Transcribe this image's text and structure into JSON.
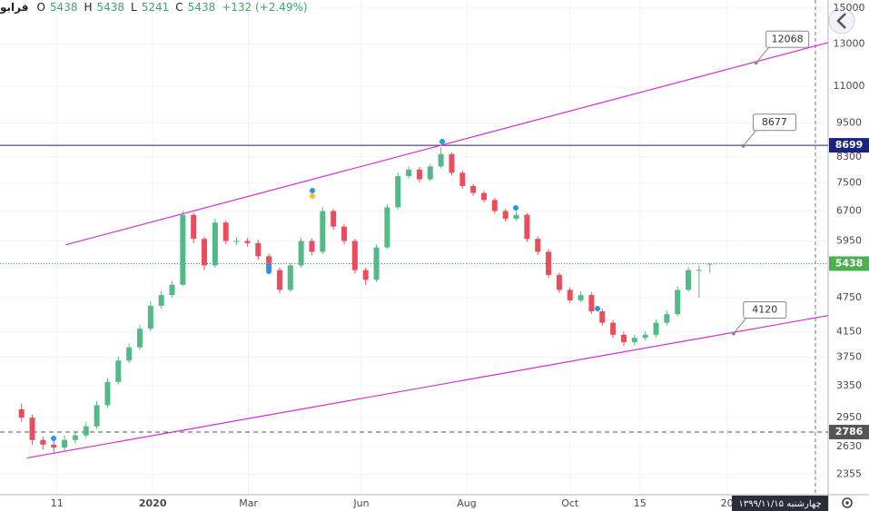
{
  "chart_data": {
    "type": "candlestick",
    "symbol": "فرابو",
    "ohlc_letters": [
      "O",
      "H",
      "L",
      "C"
    ],
    "change_label": "+132 (+2.49%)",
    "crosshair_date": "چهارشنبه ۱۳۹۹/۱۱/۱۵",
    "log_scale": true,
    "grid": true,
    "up_color": "#53b987",
    "down_color": "#eb4d5c",
    "xlim": [
      -2,
      75
    ],
    "ylim": [
      2173,
      15490
    ],
    "yticks": [
      2355,
      2630,
      2950,
      3350,
      3750,
      4150,
      4750,
      5950,
      6700,
      7500,
      8300,
      9500,
      11000,
      13000,
      15000
    ],
    "xticks": [
      {
        "value": 3.3,
        "label": "11"
      },
      {
        "value": 12.2,
        "label": "2020"
      },
      {
        "value": 21.1,
        "label": "Mar"
      },
      {
        "value": 31.6,
        "label": "Jun"
      },
      {
        "value": 41.4,
        "label": "Aug"
      },
      {
        "value": 51,
        "label": "Oct"
      },
      {
        "value": 57.5,
        "label": "15"
      },
      {
        "value": 65.6,
        "label": "20"
      }
    ],
    "ohlc": [
      [
        3050,
        3120,
        2900,
        2950
      ],
      [
        2950,
        2990,
        2650,
        2700
      ],
      [
        2700,
        2740,
        2600,
        2650
      ],
      [
        2650,
        2700,
        2570,
        2620
      ],
      [
        2620,
        2750,
        2590,
        2700
      ],
      [
        2700,
        2800,
        2660,
        2750
      ],
      [
        2750,
        2900,
        2720,
        2850
      ],
      [
        2850,
        3150,
        2820,
        3100
      ],
      [
        3100,
        3450,
        3070,
        3400
      ],
      [
        3400,
        3760,
        3370,
        3700
      ],
      [
        3700,
        3960,
        3660,
        3900
      ],
      [
        3900,
        4260,
        3860,
        4200
      ],
      [
        4200,
        4680,
        4160,
        4600
      ],
      [
        4600,
        4880,
        4550,
        4800
      ],
      [
        4800,
        5080,
        4750,
        5000
      ],
      [
        5000,
        6700,
        4980,
        6600
      ],
      [
        6600,
        6650,
        5900,
        6000
      ],
      [
        6000,
        6050,
        5300,
        5400
      ],
      [
        5400,
        6500,
        5350,
        6400
      ],
      [
        6400,
        6450,
        5880,
        5950
      ],
      [
        5950,
        6050,
        5850,
        5950
      ],
      [
        5950,
        6020,
        5820,
        5900
      ],
      [
        5900,
        5980,
        5520,
        5600
      ],
      [
        5600,
        5660,
        5220,
        5300
      ],
      [
        5300,
        5360,
        4830,
        4900
      ],
      [
        4900,
        5460,
        4860,
        5400
      ],
      [
        5400,
        6020,
        5350,
        5950
      ],
      [
        5950,
        6010,
        5620,
        5700
      ],
      [
        5700,
        6800,
        5650,
        6700
      ],
      [
        6700,
        6760,
        6220,
        6300
      ],
      [
        6300,
        6360,
        5870,
        5950
      ],
      [
        5950,
        6000,
        5230,
        5300
      ],
      [
        5300,
        5350,
        5000,
        5100
      ],
      [
        5100,
        5870,
        5060,
        5800
      ],
      [
        5800,
        6880,
        5760,
        6800
      ],
      [
        6800,
        7800,
        6750,
        7700
      ],
      [
        7700,
        8000,
        7620,
        7900
      ],
      [
        7900,
        7980,
        7520,
        7600
      ],
      [
        7600,
        8080,
        7540,
        8000
      ],
      [
        8000,
        8620,
        7950,
        8400
      ],
      [
        8400,
        8460,
        7720,
        7800
      ],
      [
        7800,
        7870,
        7320,
        7400
      ],
      [
        7400,
        7460,
        7120,
        7200
      ],
      [
        7200,
        7260,
        6930,
        7000
      ],
      [
        7000,
        7060,
        6630,
        6700
      ],
      [
        6700,
        6760,
        6430,
        6500
      ],
      [
        6500,
        6700,
        6450,
        6600
      ],
      [
        6600,
        6650,
        5930,
        6000
      ],
      [
        6000,
        6060,
        5630,
        5700
      ],
      [
        5700,
        5760,
        5140,
        5200
      ],
      [
        5200,
        5250,
        4840,
        4900
      ],
      [
        4900,
        4950,
        4650,
        4700
      ],
      [
        4700,
        4870,
        4660,
        4800
      ],
      [
        4800,
        4850,
        4450,
        4500
      ],
      [
        4500,
        4550,
        4250,
        4300
      ],
      [
        4300,
        4350,
        4050,
        4100
      ],
      [
        4100,
        4150,
        3920,
        3980
      ],
      [
        3980,
        4100,
        3930,
        4050
      ],
      [
        4050,
        4160,
        4010,
        4100
      ],
      [
        4100,
        4360,
        4060,
        4300
      ],
      [
        4300,
        4510,
        4260,
        4450
      ],
      [
        4450,
        4970,
        4410,
        4900
      ],
      [
        4900,
        5370,
        4860,
        5300
      ],
      [
        5300,
        5400,
        4750,
        5306
      ],
      [
        5438,
        5438,
        5241,
        5438
      ]
    ],
    "levels": [
      {
        "value": 8699,
        "color": "#1a237e",
        "style": "solid"
      },
      {
        "value": 5438,
        "color": "#4caf50",
        "style": "dotted"
      },
      {
        "value": 2786,
        "color": "#555555",
        "style": "dashed"
      }
    ],
    "trendlines": [
      {
        "x": [
          4.1,
          75
        ],
        "y": [
          5860,
          13080
        ],
        "color": "#d62ad6"
      },
      {
        "x": [
          0.5,
          75
        ],
        "y": [
          2514,
          4425
        ],
        "color": "#d62ad6"
      }
    ],
    "callouts": [
      {
        "x": 68.3,
        "value": 12068
      },
      {
        "x": 67.1,
        "value": 8677
      },
      {
        "x": 66.2,
        "value": 4120
      }
    ]
  }
}
